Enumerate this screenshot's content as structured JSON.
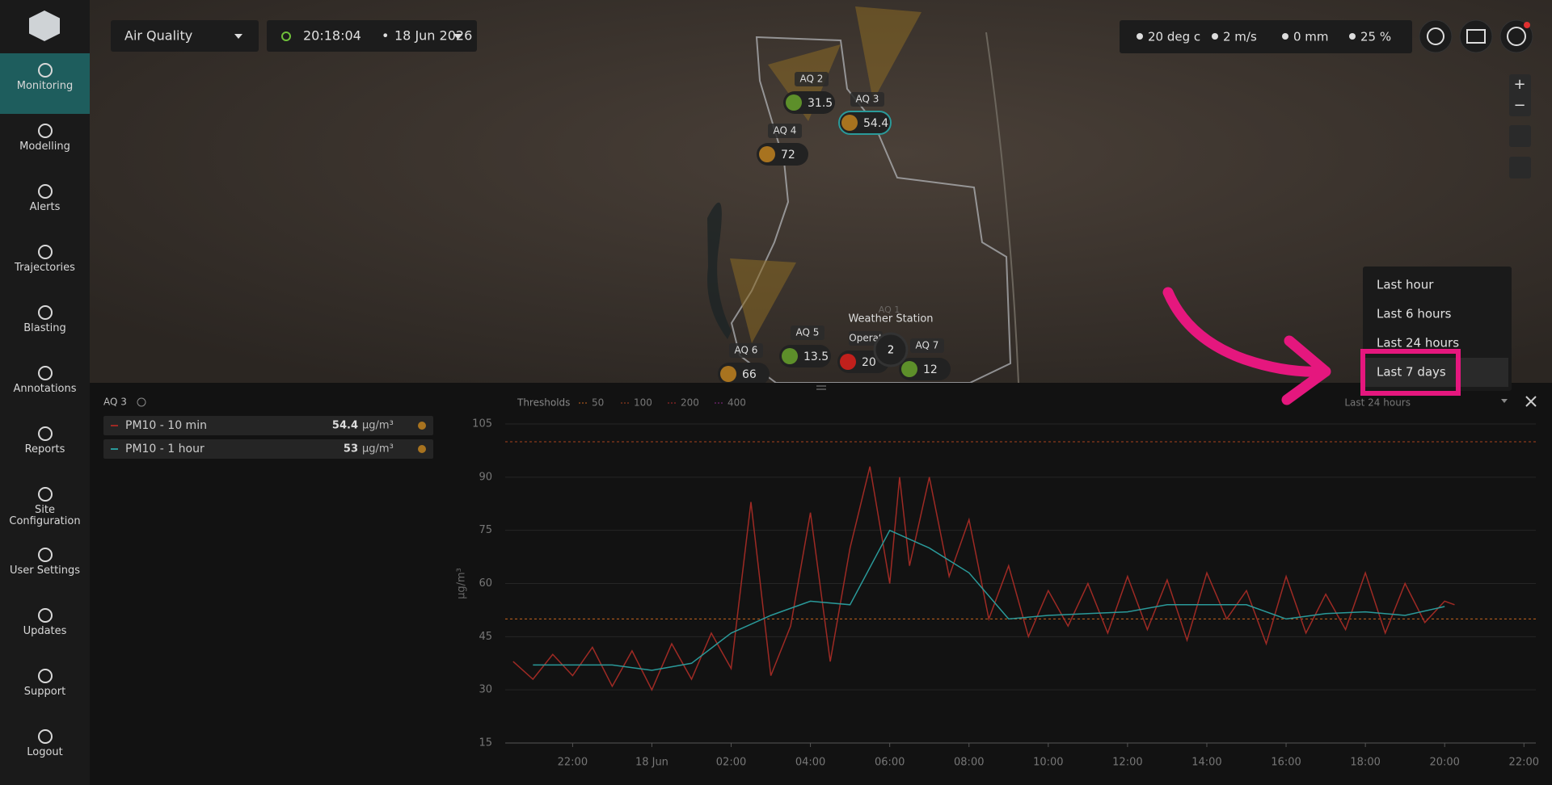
{
  "sidebar": {
    "items": [
      "Monitoring",
      "Modelling",
      "Alerts",
      "Trajectories",
      "Blasting",
      "Annotations",
      "Reports",
      "Site Configuration",
      "User Settings",
      "Updates",
      "Support",
      "Logout"
    ],
    "active": 0
  },
  "topbar": {
    "layer": "Air Quality",
    "time": "20:18:04",
    "date": "18 Jun 2026",
    "weather": [
      "20 deg c",
      "2 m/s",
      "0 mm",
      "25 %"
    ]
  },
  "map": {
    "markers": [
      {
        "label": "AQ 2",
        "value": 31.5,
        "color": "#5d8f2a"
      },
      {
        "label": "AQ 3",
        "value": 54.4,
        "color": "#a8731f"
      },
      {
        "label": "AQ 4",
        "value": 72,
        "color": "#a8731f"
      },
      {
        "label": "AQ 5",
        "value": 13.5,
        "color": "#5d8f2a"
      },
      {
        "label": "AQ 6",
        "value": 66,
        "color": "#a8731f"
      },
      {
        "label": "AQ 7",
        "value": 12,
        "color": "#5d8f2a"
      },
      {
        "label": "Operat",
        "value": 20,
        "color": "#c0201c"
      }
    ],
    "labels": [
      "Weather Station",
      "AQ 1"
    ],
    "cluster": 2
  },
  "dropdown": {
    "options": [
      "Last hour",
      "Last 6 hours",
      "Last 24 hours",
      "Last 7 days"
    ],
    "selected": 3
  },
  "panel": {
    "site": "AQ 3",
    "range": "Last 24 hours",
    "thresholds_label": "Thresholds",
    "thresholds": [
      {
        "value": 50,
        "color": "#c8641e"
      },
      {
        "value": 100,
        "color": "#a8431e"
      },
      {
        "value": 200,
        "color": "#b02a2a"
      },
      {
        "value": 400,
        "color": "#8a2a8a"
      }
    ],
    "legend": [
      {
        "current": 54.4,
        "unit": "µg/m³",
        "dot": "#a8731f"
      },
      {
        "current": 53,
        "unit": "µg/m³",
        "dot": "#a8731f"
      }
    ],
    "chart": {
      "type": "line",
      "ylabel": "µg/m³",
      "xlim": [
        -3.7,
        22.3
      ],
      "xticks": [
        {
          "value": -2,
          "label": "22:00"
        },
        {
          "value": 0,
          "label": "18 Jun"
        },
        {
          "value": 2,
          "label": "02:00"
        },
        {
          "value": 4,
          "label": "04:00"
        },
        {
          "value": 6,
          "label": "06:00"
        },
        {
          "value": 8,
          "label": "08:00"
        },
        {
          "value": 10,
          "label": "10:00"
        },
        {
          "value": 12,
          "label": "12:00"
        },
        {
          "value": 14,
          "label": "14:00"
        },
        {
          "value": 16,
          "label": "16:00"
        },
        {
          "value": 18,
          "label": "18:00"
        },
        {
          "value": 20,
          "label": "20:00"
        },
        {
          "value": 22,
          "label": "22:00"
        }
      ],
      "ylim": [
        15,
        105
      ],
      "yticks": [
        15,
        30,
        45,
        60,
        75,
        90,
        105
      ],
      "grid": true,
      "series": [
        {
          "name": "PM10 - 10 min",
          "color": "#9e2a24",
          "x": [
            -3.5,
            -3,
            -2.5,
            -2,
            -1.5,
            -1,
            -0.5,
            0,
            0.5,
            1,
            1.5,
            2,
            2.5,
            3,
            3.5,
            4,
            4.5,
            5,
            5.5,
            6,
            6.25,
            6.5,
            7,
            7.5,
            8,
            8.5,
            9,
            9.5,
            10,
            10.5,
            11,
            11.5,
            12,
            12.5,
            13,
            13.5,
            14,
            14.5,
            15,
            15.5,
            16,
            16.5,
            17,
            17.5,
            18,
            18.5,
            19,
            19.5,
            20,
            20.25
          ],
          "values": [
            38,
            33,
            40,
            34,
            42,
            31,
            41,
            30,
            43,
            33,
            46,
            36,
            83,
            34,
            48,
            80,
            38,
            70,
            93,
            60,
            90,
            65,
            90,
            62,
            78,
            50,
            65,
            45,
            58,
            48,
            60,
            46,
            62,
            47,
            61,
            44,
            63,
            50,
            58,
            43,
            62,
            46,
            57,
            47,
            63,
            46,
            60,
            49,
            55,
            54
          ]
        },
        {
          "name": "PM10 - 1 hour",
          "color": "#2a9a9a",
          "x": [
            -3,
            -2,
            -1,
            0,
            1,
            2,
            3,
            4,
            5,
            6,
            7,
            8,
            9,
            10,
            11,
            12,
            13,
            14,
            15,
            16,
            17,
            18,
            19,
            20
          ],
          "values": [
            37,
            37,
            37,
            35.5,
            37.5,
            46,
            51,
            55,
            54,
            75,
            70,
            63,
            50,
            51,
            51.5,
            52,
            54,
            54,
            54,
            50,
            51.5,
            52,
            51,
            53.5
          ]
        }
      ]
    }
  }
}
